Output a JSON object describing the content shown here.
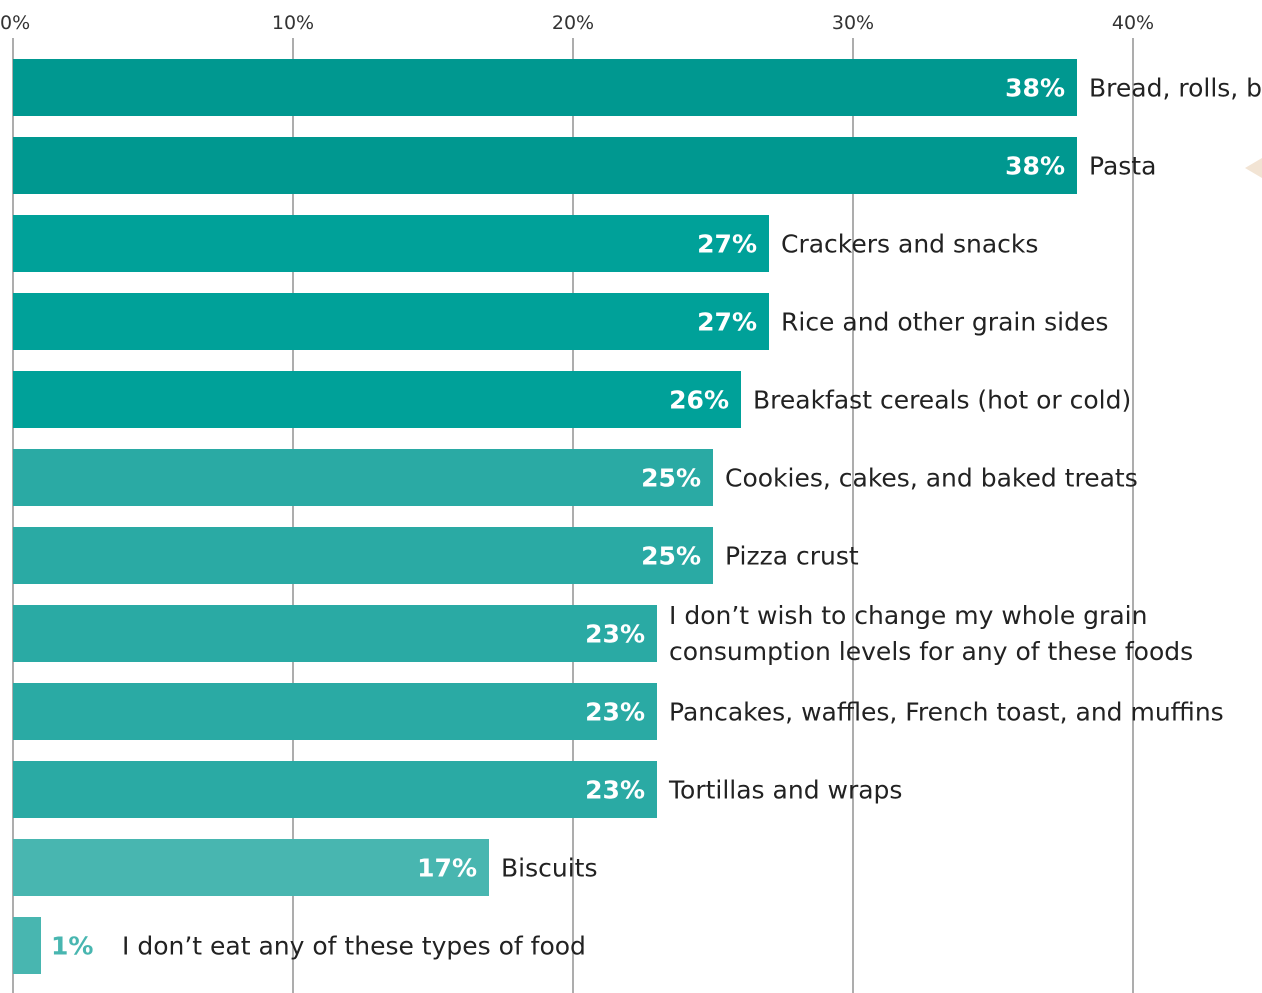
{
  "chart_data": {
    "type": "bar",
    "orientation": "horizontal",
    "xlim": [
      0,
      40
    ],
    "x_ticks": [
      "0%",
      "10%",
      "20%",
      "30%",
      "40%"
    ],
    "grid": true,
    "categories": [
      "Bread, rolls, b",
      "Pasta",
      "Crackers and snacks",
      "Rice and other grain sides",
      "Breakfast cereals (hot or cold)",
      "Cookies, cakes, and baked treats",
      "Pizza crust",
      "I don’t wish to change my whole grain consumption levels for any of these foods",
      "Pancakes, waffles, French toast, and muffins",
      "Tortillas and wraps",
      "Biscuits",
      "I don’t eat any of these types of food"
    ],
    "values": [
      38,
      38,
      27,
      27,
      26,
      25,
      25,
      23,
      23,
      23,
      17,
      1
    ],
    "value_labels": [
      "38%",
      "38%",
      "27%",
      "27%",
      "26%",
      "25%",
      "25%",
      "23%",
      "23%",
      "23%",
      "17%",
      "1%"
    ],
    "colors": [
      "#009890",
      "#009890",
      "#00A199",
      "#00A199",
      "#00A199",
      "#2AAAA4",
      "#2AAAA4",
      "#2AAAA4",
      "#2AAAA4",
      "#2AAAA4",
      "#48B6B0",
      "#48B6B0"
    ],
    "label_color": "#ffffff",
    "small_value_label_color": "#48B6B0"
  }
}
